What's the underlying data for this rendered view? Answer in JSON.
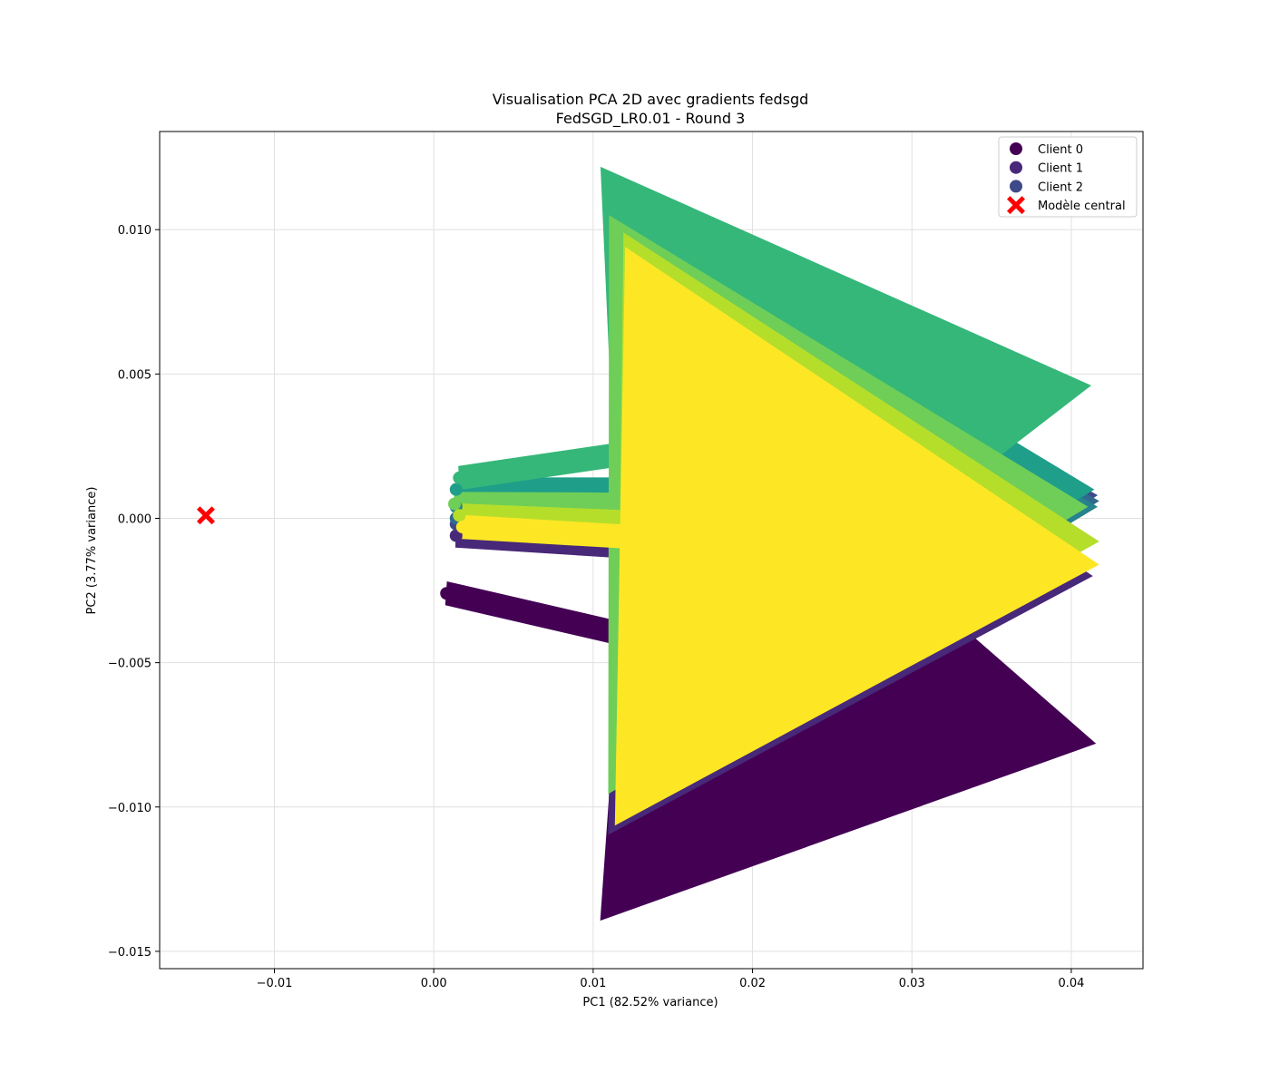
{
  "chart_data": {
    "type": "scatter",
    "title": "Visualisation PCA 2D avec gradients fedsgd",
    "subtitle": "FedSGD_LR0.01 - Round 3",
    "xlabel": "PC1 (82.52% variance)",
    "ylabel": "PC2 (3.77% variance)",
    "xlim": [
      -0.0172,
      0.0445
    ],
    "ylim": [
      -0.0156,
      0.0134
    ],
    "xticks": [
      -0.01,
      0.0,
      0.01,
      0.02,
      0.03,
      0.04
    ],
    "xtick_labels": [
      "−0.01",
      "0.00",
      "0.01",
      "0.02",
      "0.03",
      "0.04"
    ],
    "yticks": [
      -0.015,
      -0.01,
      -0.005,
      0.0,
      0.005,
      0.01
    ],
    "ytick_labels": [
      "−0.015",
      "−0.010",
      "−0.005",
      "0.000",
      "0.005",
      "0.010"
    ],
    "grid": true,
    "legend_position": "top-right",
    "series": [
      {
        "name": "Client 0",
        "color": "#440154",
        "x": [
          0.0008
        ],
        "y": [
          -0.0026
        ]
      },
      {
        "name": "Client 1",
        "color": "#482878",
        "x": [
          0.0014
        ],
        "y": [
          -0.0006
        ]
      },
      {
        "name": "Client 2",
        "color": "#3e4989",
        "x": [
          0.0014
        ],
        "y": [
          -0.0002
        ]
      },
      {
        "color": "#31688e",
        "x": [
          0.0014
        ],
        "y": [
          0.0
        ]
      },
      {
        "color": "#26828e",
        "x": [
          0.0014
        ],
        "y": [
          0.0004
        ]
      },
      {
        "color": "#1f9e89",
        "x": [
          0.0014
        ],
        "y": [
          0.001
        ]
      },
      {
        "color": "#35b779",
        "x": [
          0.0016
        ],
        "y": [
          0.0014
        ]
      },
      {
        "color": "#6ece58",
        "x": [
          0.0013
        ],
        "y": [
          0.0005
        ]
      },
      {
        "color": "#b5de2b",
        "x": [
          0.0016
        ],
        "y": [
          0.0001
        ]
      },
      {
        "color": "#fde725",
        "x": [
          0.0018
        ],
        "y": [
          -0.0003
        ]
      }
    ],
    "arrows": [
      {
        "color": "#440154",
        "x": 0.0008,
        "y": -0.0026,
        "dx": 0.0407,
        "dy": -0.0052
      },
      {
        "color": "#482878",
        "x": 0.0014,
        "y": -0.0006,
        "dx": 0.0399,
        "dy": -0.0014
      },
      {
        "color": "#3e4989",
        "x": 0.0014,
        "y": -0.0002,
        "dx": 0.0402,
        "dy": 0.001
      },
      {
        "color": "#31688e",
        "x": 0.0014,
        "y": 0.0,
        "dx": 0.0403,
        "dy": 0.0006
      },
      {
        "color": "#26828e",
        "x": 0.0014,
        "y": 0.0004,
        "dx": 0.0402,
        "dy": 0.0
      },
      {
        "color": "#1f9e89",
        "x": 0.0014,
        "y": 0.001,
        "dx": 0.04,
        "dy": 0.0
      },
      {
        "color": "#35b779",
        "x": 0.0016,
        "y": 0.0014,
        "dx": 0.0396,
        "dy": 0.0032
      },
      {
        "color": "#6ece58",
        "x": 0.0013,
        "y": 0.0005,
        "dx": 0.0397,
        "dy": -0.0001
      },
      {
        "color": "#b5de2b",
        "x": 0.0016,
        "y": 0.0001,
        "dx": 0.0401,
        "dy": -0.0009
      },
      {
        "color": "#fde725",
        "x": 0.0018,
        "y": -0.0003,
        "dx": 0.0399,
        "dy": -0.0013
      }
    ],
    "central_model": {
      "name": "Modèle central",
      "color": "#ff0000",
      "marker": "X",
      "x": -0.0143,
      "y": 0.0001
    }
  }
}
